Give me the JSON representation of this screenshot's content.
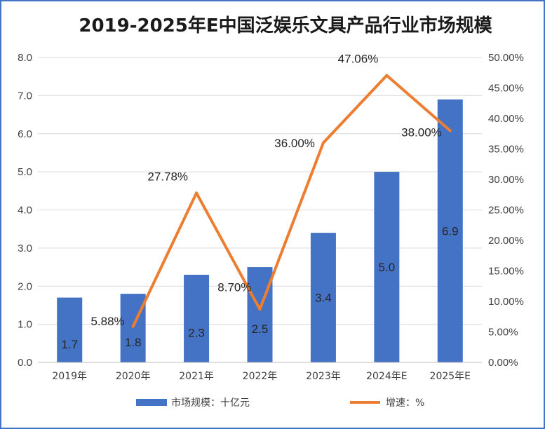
{
  "chart_data": {
    "type": "bar",
    "title": "2019-2025年E中国泛娱乐文具产品行业市场规模",
    "categories": [
      "2019年",
      "2020年",
      "2021年",
      "2022年",
      "2023年",
      "2024年E",
      "2025年E"
    ],
    "series": [
      {
        "name": "市场规模：十亿元",
        "type": "bar",
        "axis": "left",
        "color": "#4472C4",
        "values": [
          1.7,
          1.8,
          2.3,
          2.5,
          3.4,
          5.0,
          6.9
        ],
        "labels": [
          "1.7",
          "1.8",
          "2.3",
          "2.5",
          "3.4",
          "5.0",
          "6.9"
        ]
      },
      {
        "name": "增速：%",
        "type": "line",
        "axis": "right",
        "color": "#ED7D31",
        "values": [
          null,
          5.88,
          27.78,
          8.7,
          36.0,
          47.06,
          38.0
        ],
        "labels": [
          "",
          "5.88%",
          "27.78%",
          "8.70%",
          "36.00%",
          "47.06%",
          "38.00%"
        ]
      }
    ],
    "y_left": {
      "min": 0,
      "max": 8,
      "step": 1,
      "ticks": [
        "0.0",
        "1.0",
        "2.0",
        "3.0",
        "4.0",
        "5.0",
        "6.0",
        "7.0",
        "8.0"
      ]
    },
    "y_right": {
      "min": 0,
      "max": 50,
      "step": 5,
      "ticks": [
        "0.00%",
        "5.00%",
        "10.00%",
        "15.00%",
        "20.00%",
        "25.00%",
        "30.00%",
        "35.00%",
        "40.00%",
        "45.00%",
        "50.00%"
      ]
    },
    "grid": true,
    "legend_position": "bottom"
  }
}
